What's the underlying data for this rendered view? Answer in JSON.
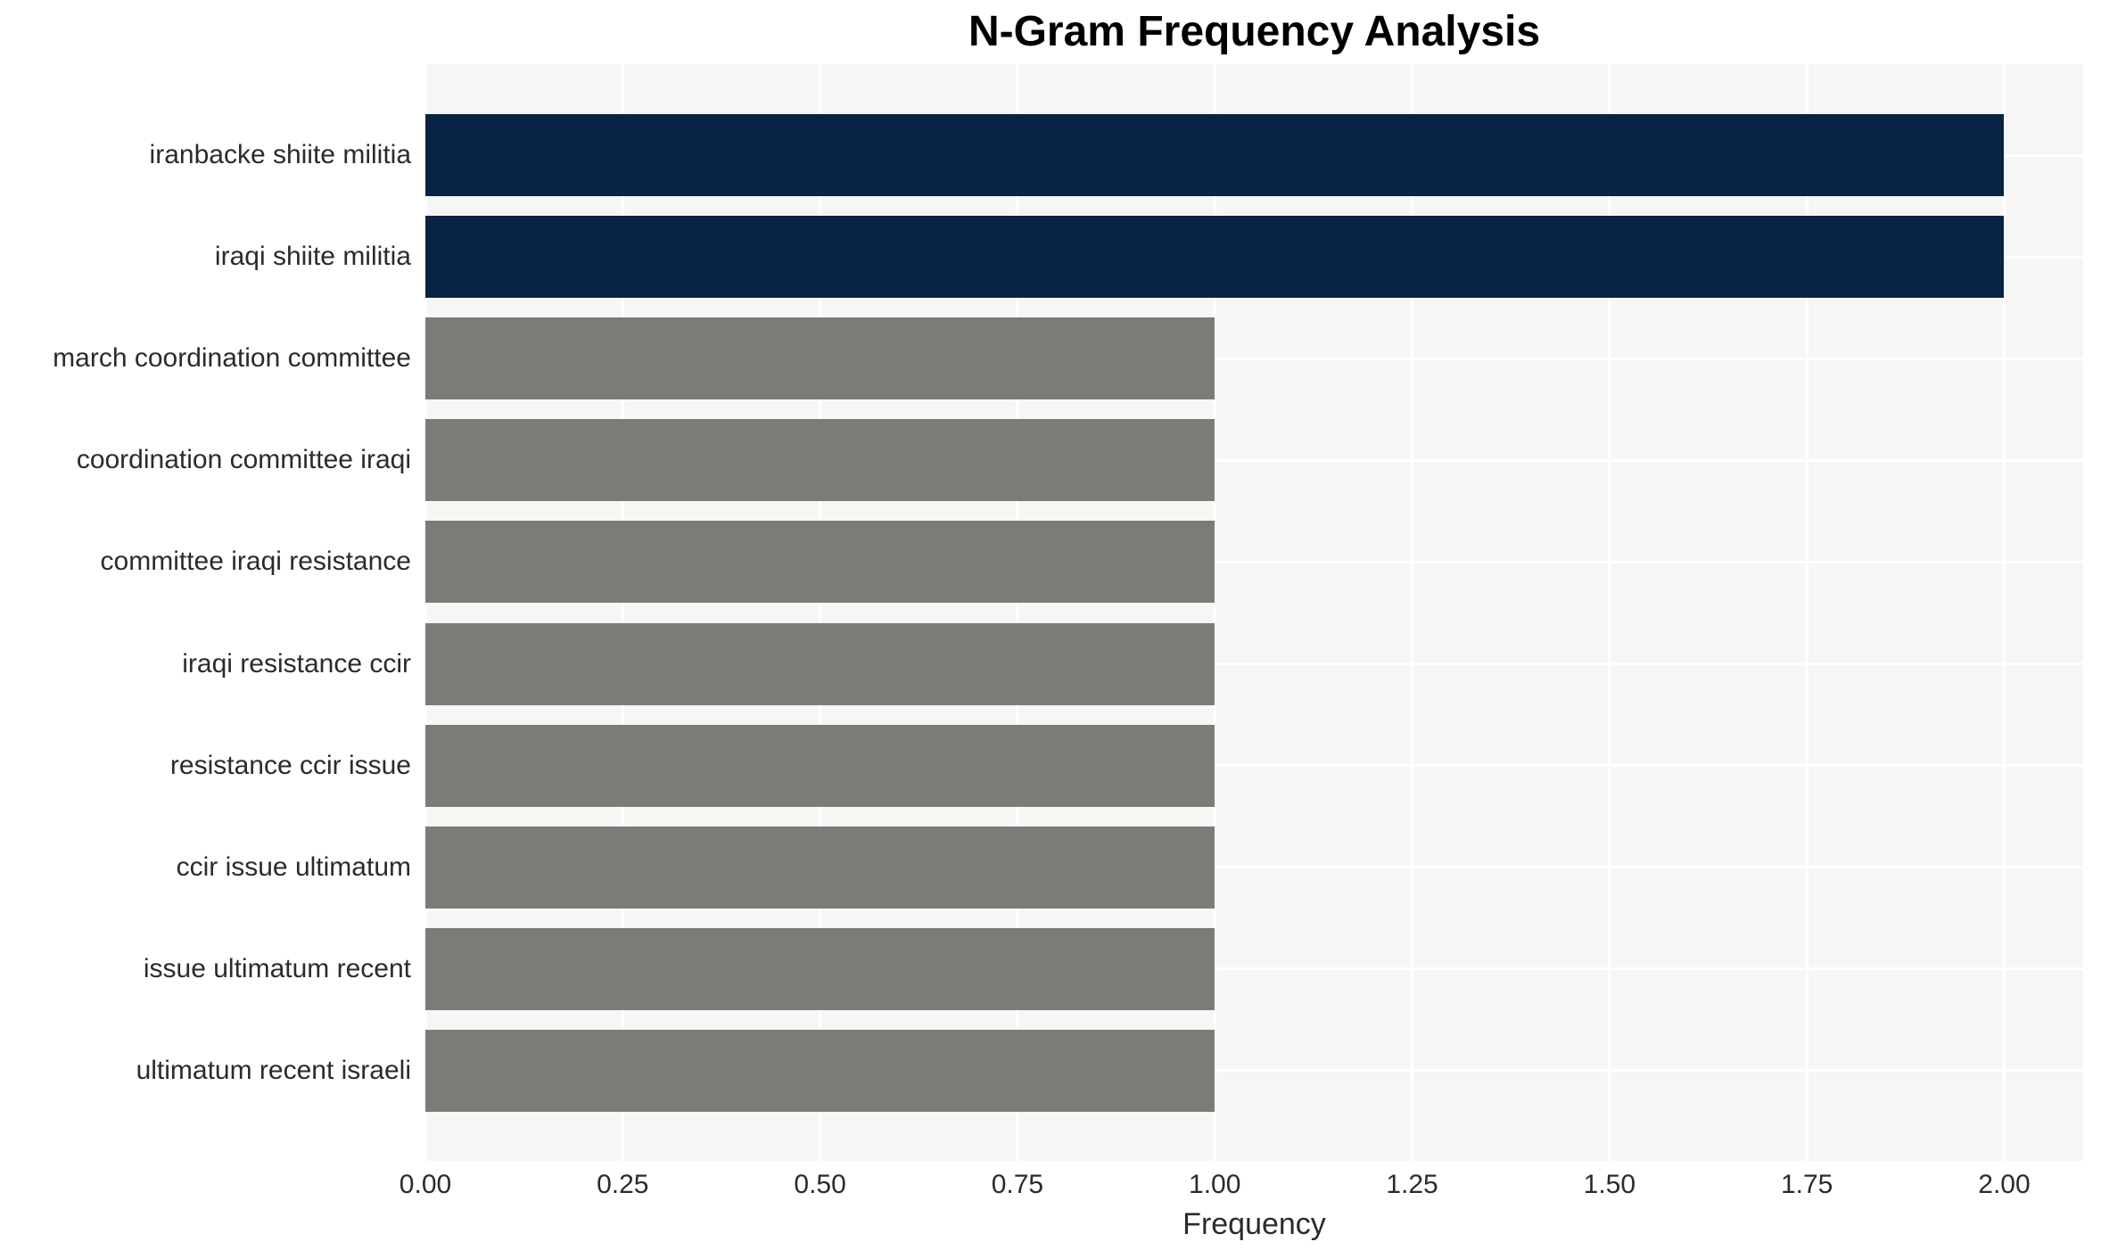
{
  "chart_data": {
    "type": "bar",
    "orientation": "horizontal",
    "title": "N-Gram Frequency Analysis",
    "xlabel": "Frequency",
    "ylabel": "",
    "categories": [
      "iranbacke shiite militia",
      "iraqi shiite militia",
      "march coordination committee",
      "coordination committee iraqi",
      "committee iraqi resistance",
      "iraqi resistance ccir",
      "resistance ccir issue",
      "ccir issue ultimatum",
      "issue ultimatum recent",
      "ultimatum recent israeli"
    ],
    "values": [
      2,
      2,
      1,
      1,
      1,
      1,
      1,
      1,
      1,
      1
    ],
    "bar_colors": [
      "#082444",
      "#082444",
      "#7b7b78",
      "#7b7b78",
      "#7b7b78",
      "#7b7b78",
      "#7b7b78",
      "#7b7b78",
      "#7b7b78",
      "#7b7b78"
    ],
    "xticks": [
      0.0,
      0.25,
      0.5,
      0.75,
      1.0,
      1.25,
      1.5,
      1.75,
      2.0
    ],
    "xtick_labels": [
      "0.00",
      "0.25",
      "0.50",
      "0.75",
      "1.00",
      "1.25",
      "1.50",
      "1.75",
      "2.00"
    ],
    "xlim": [
      0,
      2.1
    ],
    "grid": true,
    "legend": false,
    "colors": {
      "high_freq_bar": "#082444",
      "low_freq_bar": "#7b7b78",
      "plot_background": "#f7f6f5",
      "gridline": "#ffffff",
      "tick_text": "#2b2b2b",
      "title_text": "#000000"
    }
  }
}
